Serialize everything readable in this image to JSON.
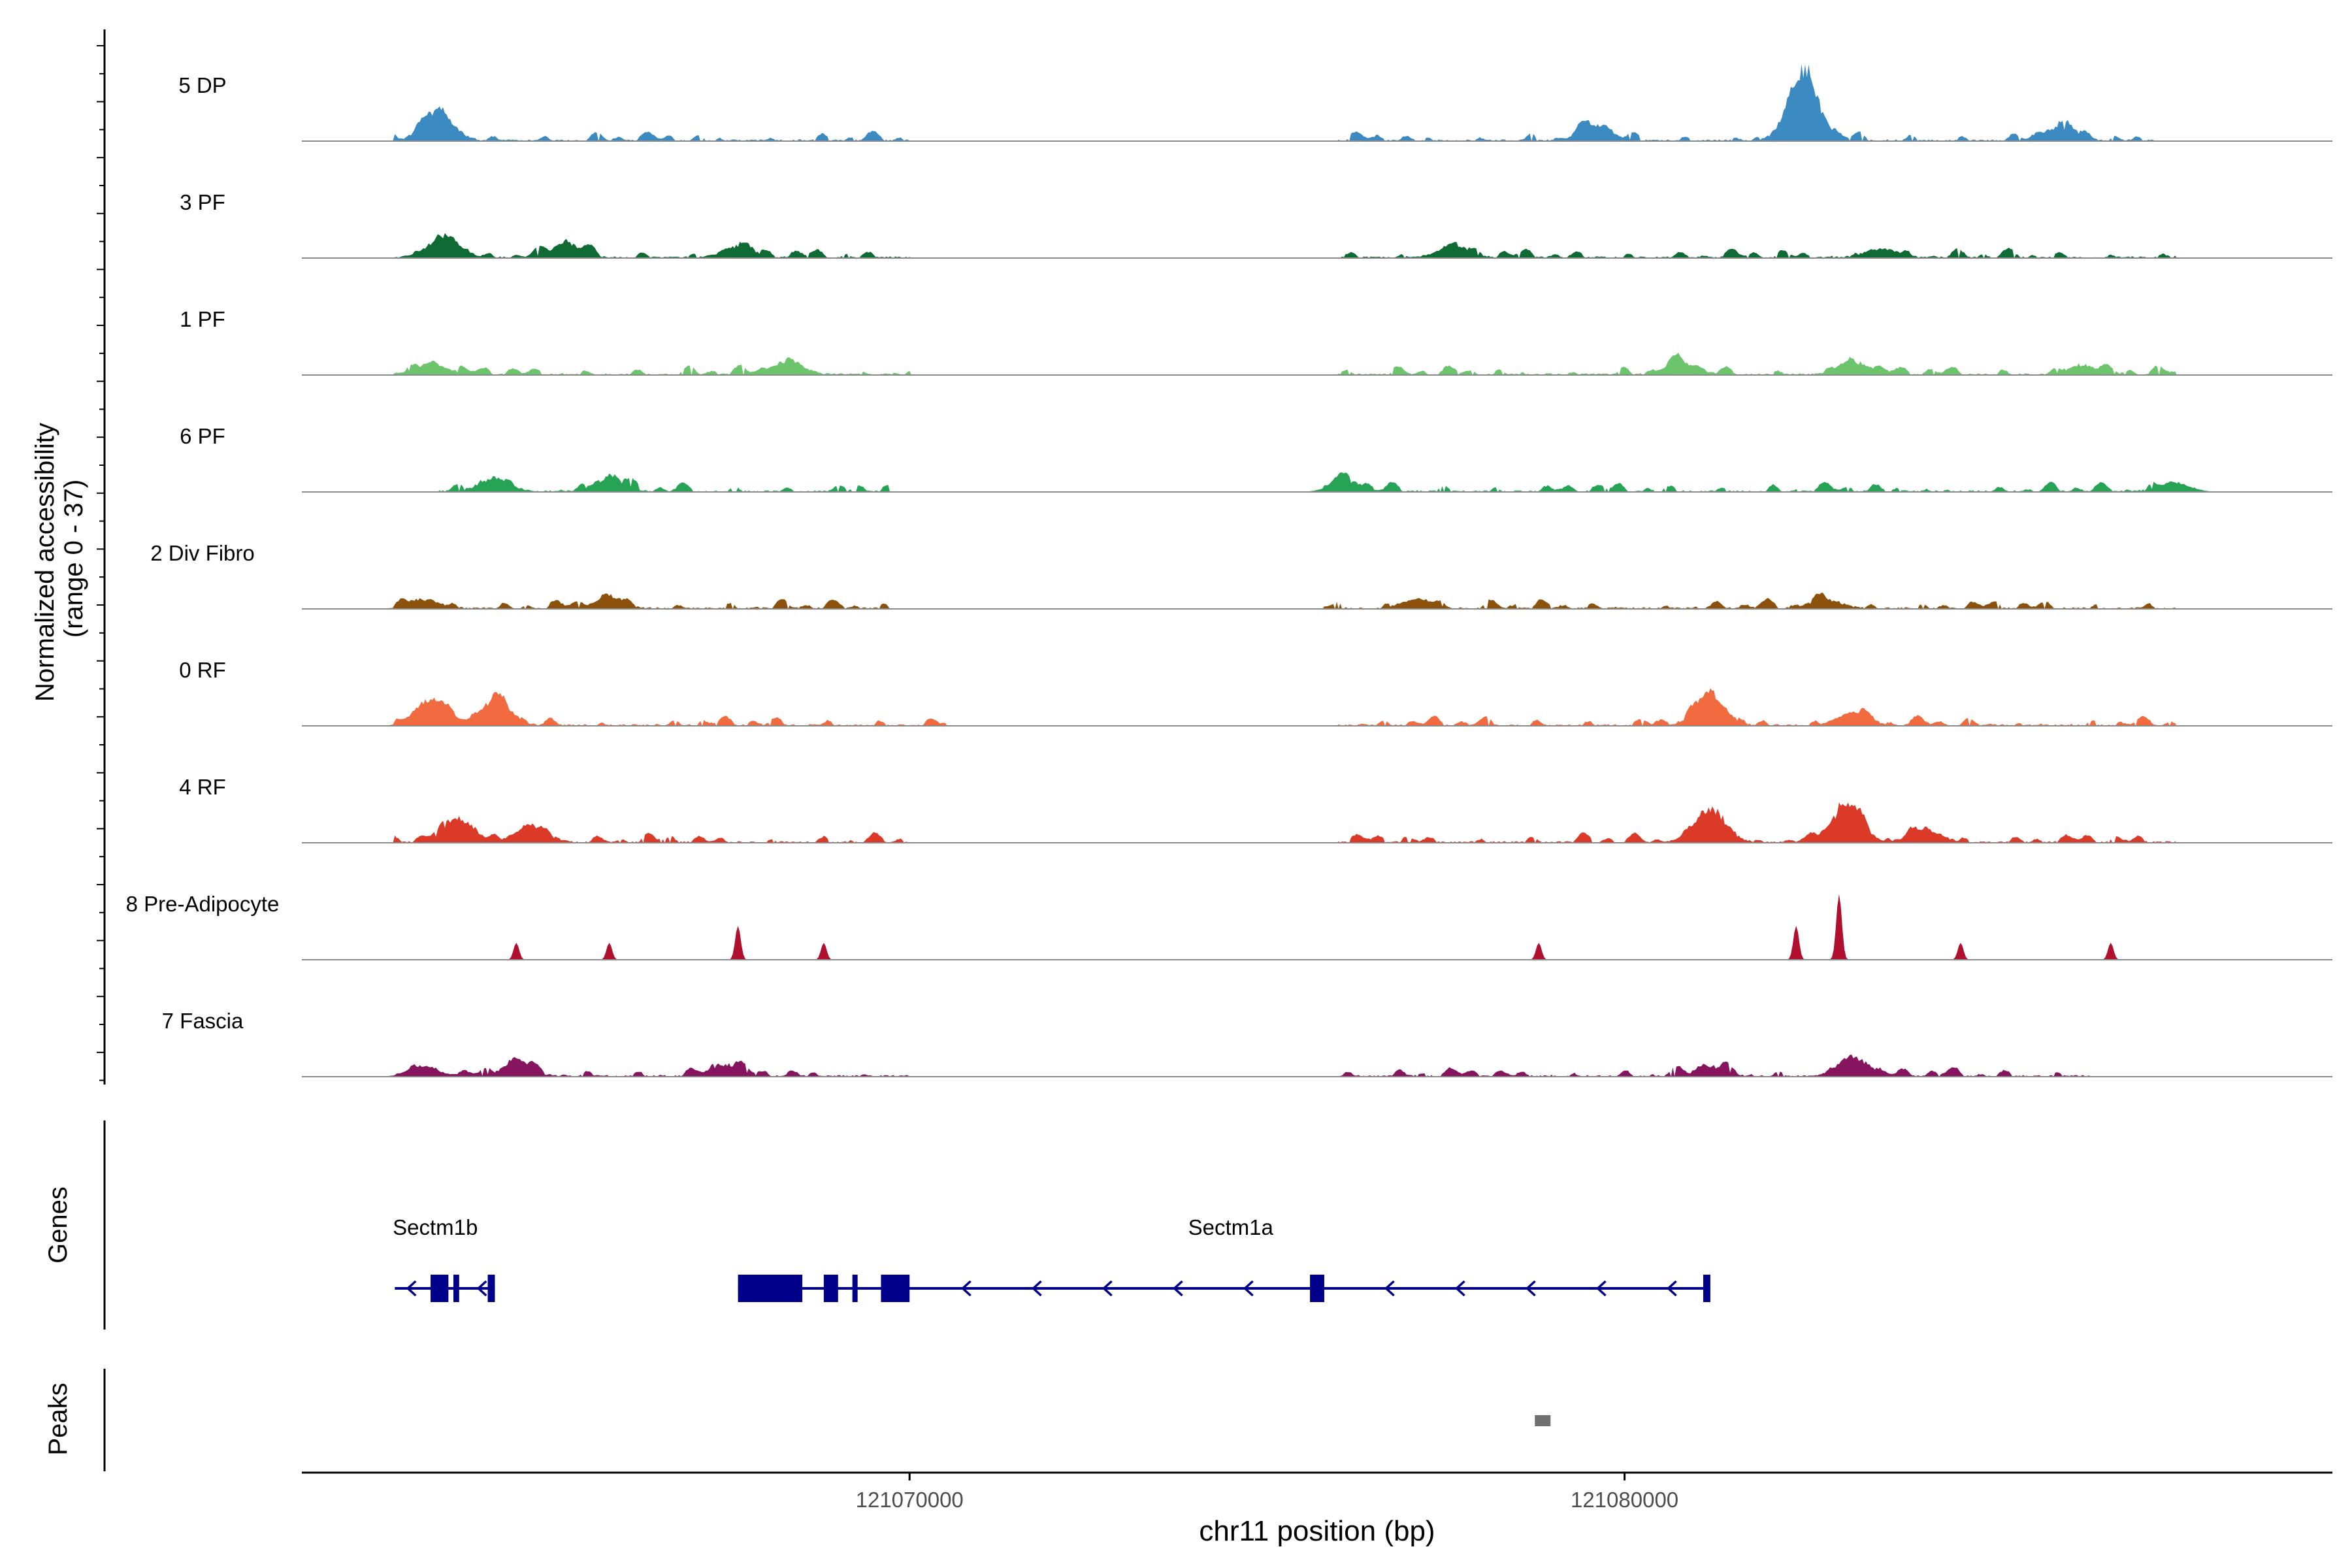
{
  "chart_data": {
    "type": "area",
    "title": "",
    "xlabel": "chr11 position (bp)",
    "xlim": [
      121061500,
      121089900
    ],
    "x_ticks": [
      {
        "value": 121070000,
        "label": "121070000"
      },
      {
        "value": 121080000,
        "label": "121080000"
      }
    ],
    "y_panel_label": [
      "Normalized accessibility",
      "(range 0 - 37)"
    ],
    "ylim": [
      0,
      37
    ],
    "coverage_tracks": [
      {
        "name": "5 DP",
        "color": "#3B8BC2",
        "peaks": [
          [
            121063400,
            15
          ],
          [
            121079600,
            8
          ],
          [
            121082500,
            35
          ],
          [
            121086100,
            7
          ]
        ],
        "regions": [
          [
            121062800,
            121070000
          ],
          [
            121076000,
            121087400
          ]
        ]
      },
      {
        "name": "3 PF",
        "color": "#0E6B33",
        "peaks": [
          [
            121063500,
            12
          ],
          [
            121065200,
            7
          ],
          [
            121067600,
            6
          ],
          [
            121077600,
            6
          ],
          [
            121083600,
            5
          ]
        ],
        "regions": [
          [
            121062800,
            121070000
          ],
          [
            121076000,
            121087700
          ]
        ]
      },
      {
        "name": "1 PF",
        "color": "#6CC46C",
        "peaks": [
          [
            121063300,
            6
          ],
          [
            121068300,
            7
          ],
          [
            121080800,
            6
          ],
          [
            121083200,
            7
          ],
          [
            121086400,
            5
          ]
        ],
        "regions": [
          [
            121062800,
            121070000
          ],
          [
            121076000,
            121087700
          ]
        ]
      },
      {
        "name": "6 PF",
        "color": "#27A355",
        "peaks": [
          [
            121064200,
            7
          ],
          [
            121065800,
            7
          ],
          [
            121076100,
            6
          ],
          [
            121087700,
            5
          ]
        ],
        "regions": [
          [
            121063400,
            121069700
          ],
          [
            121075800,
            121087700
          ]
        ]
      },
      {
        "name": "2 Div Fibro",
        "color": "#8C510A",
        "peaks": [
          [
            121063200,
            5
          ],
          [
            121065800,
            5
          ],
          [
            121077100,
            5
          ],
          [
            121082800,
            5
          ]
        ],
        "regions": [
          [
            121062800,
            121069700
          ],
          [
            121075800,
            121087700
          ]
        ]
      },
      {
        "name": "0 RF",
        "color": "#F26B40",
        "peaks": [
          [
            121063300,
            14
          ],
          [
            121064200,
            13
          ],
          [
            121081200,
            15
          ],
          [
            121083200,
            7
          ]
        ],
        "regions": [
          [
            121062800,
            121070500
          ],
          [
            121076000,
            121087700
          ]
        ]
      },
      {
        "name": "4 RF",
        "color": "#DB3A29",
        "peaks": [
          [
            121063700,
            12
          ],
          [
            121064700,
            9
          ],
          [
            121081200,
            18
          ],
          [
            121083100,
            19
          ],
          [
            121084200,
            7
          ]
        ],
        "regions": [
          [
            121062800,
            121070000
          ],
          [
            121076000,
            121087700
          ]
        ]
      },
      {
        "name": "8 Pre-Adipocyte",
        "color": "#B10F2E",
        "peaks": [
          [
            121064500,
            8
          ],
          [
            121065800,
            8
          ],
          [
            121067600,
            16
          ],
          [
            121068800,
            8
          ],
          [
            121078800,
            8
          ],
          [
            121082400,
            16
          ],
          [
            121083000,
            31
          ],
          [
            121084700,
            8
          ],
          [
            121086800,
            8
          ]
        ],
        "regions": [
          [
            121064300,
            121069000
          ],
          [
            121078300,
            121087200
          ]
        ]
      },
      {
        "name": "7 Fascia",
        "color": "#87145E",
        "peaks": [
          [
            121063200,
            5
          ],
          [
            121064500,
            7
          ],
          [
            121067400,
            6
          ],
          [
            121081200,
            5
          ],
          [
            121083200,
            10
          ]
        ],
        "regions": [
          [
            121062800,
            121070000
          ],
          [
            121076000,
            121086500
          ]
        ]
      }
    ],
    "gene_track": {
      "label": "Genes",
      "color": "#00008B",
      "genes": [
        {
          "name": "Sectm1b",
          "strand": "-",
          "start": 121062800,
          "end": 121064200,
          "exons": [
            [
              121063300,
              121063550
            ],
            [
              121063620,
              121063700
            ],
            [
              121064100,
              121064200
            ]
          ]
        },
        {
          "name": "Sectm1a",
          "strand": "-",
          "start": 121067600,
          "end": 121081200,
          "exons": [
            [
              121067600,
              121068500
            ],
            [
              121068800,
              121069000
            ],
            [
              121069200,
              121069250
            ],
            [
              121069600,
              121070000
            ],
            [
              121075600,
              121075800
            ],
            [
              121081100,
              121081200
            ]
          ]
        }
      ]
    },
    "peak_track": {
      "label": "Peaks",
      "color": "#707070",
      "peaks": [
        [
          121078800,
          121079000
        ]
      ]
    }
  }
}
